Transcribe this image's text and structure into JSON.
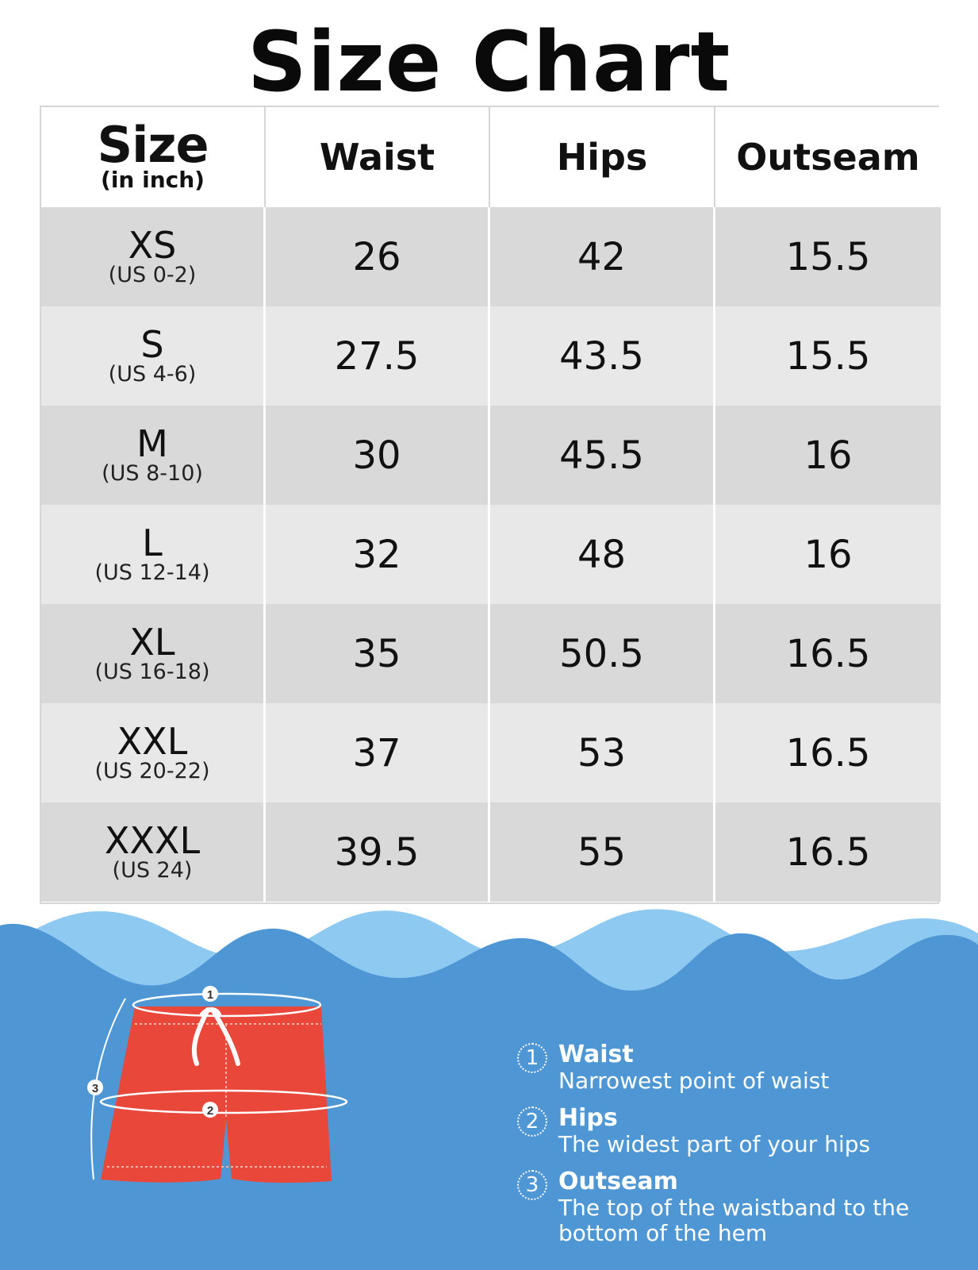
{
  "title": "Size Chart",
  "table": {
    "header": {
      "size_main": "Size",
      "size_sub": "(in inch)",
      "columns": [
        "Waist",
        "Hips",
        "Outseam"
      ]
    },
    "rows": [
      {
        "size": "XS",
        "us": "(US 0-2)",
        "waist": "26",
        "hips": "42",
        "outseam": "15.5"
      },
      {
        "size": "S",
        "us": "(US 4-6)",
        "waist": "27.5",
        "hips": "43.5",
        "outseam": "15.5"
      },
      {
        "size": "M",
        "us": "(US 8-10)",
        "waist": "30",
        "hips": "45.5",
        "outseam": "16"
      },
      {
        "size": "L",
        "us": "(US 12-14)",
        "waist": "32",
        "hips": "48",
        "outseam": "16"
      },
      {
        "size": "XL",
        "us": "(US 16-18)",
        "waist": "35",
        "hips": "50.5",
        "outseam": "16.5"
      },
      {
        "size": "XXL",
        "us": "(US 20-22)",
        "waist": "37",
        "hips": "53",
        "outseam": "16.5"
      },
      {
        "size": "XXXL",
        "us": "(US 24)",
        "waist": "39.5",
        "hips": "55",
        "outseam": "16.5"
      }
    ]
  },
  "diagram": {
    "markers": [
      "1",
      "2",
      "3"
    ]
  },
  "legend": [
    {
      "num": "1",
      "title": "Waist",
      "desc": "Narrowest point of waist"
    },
    {
      "num": "2",
      "title": "Hips",
      "desc": "The widest part of your hips"
    },
    {
      "num": "3",
      "title": "Outseam",
      "desc": "The top of the waistband to the bottom of the hem"
    }
  ],
  "colors": {
    "water": "#4f97d4",
    "wave_light": "#8ec9f2",
    "shorts": "#e8473a",
    "row_dark": "#d9d9d9",
    "row_light": "#e8e8e8"
  }
}
